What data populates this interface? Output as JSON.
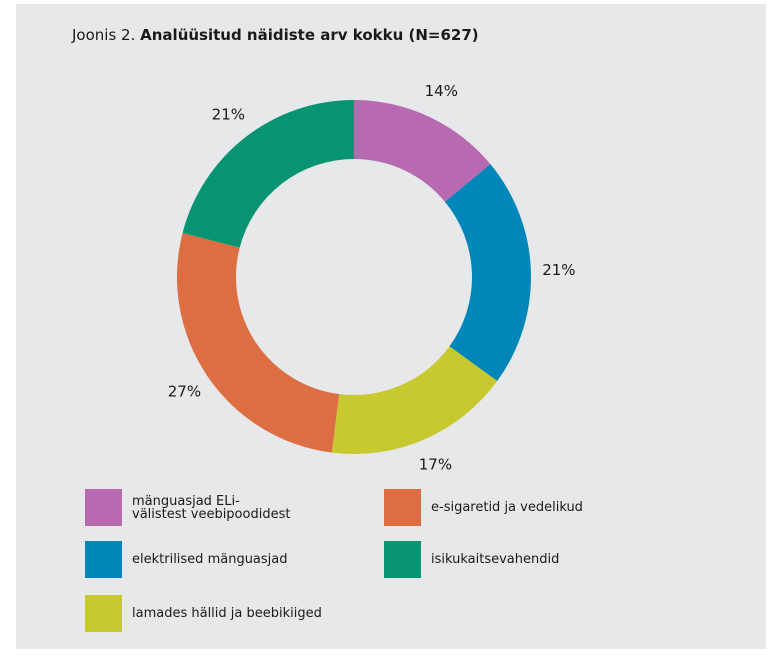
{
  "title": {
    "prefix": "Joonis 2.",
    "bold": "Analüüsitud näidiste arv kokku (N=627)"
  },
  "chart_data": {
    "type": "pie",
    "donut": true,
    "title": "Analüüsitud näidiste arv kokku (N=627)",
    "slices": [
      {
        "label": "mänguasjad ELi-\nvälistest veebipoodidest",
        "value": 14,
        "display": "14%",
        "color": "#b86ab0"
      },
      {
        "label": "elektrilised mänguasjad",
        "value": 21,
        "display": "21%",
        "color": "#0086b8"
      },
      {
        "label": "lamades hällid ja beebikiiged",
        "value": 17,
        "display": "17%",
        "color": "#c8c92f"
      },
      {
        "label": "e-sigaretid ja vedelikud",
        "value": 27,
        "display": "27%",
        "color": "#dc6e42"
      },
      {
        "label": "isikukaitsevahendid",
        "value": 21,
        "display": "21%",
        "color": "#079473"
      }
    ],
    "legend_position": "bottom"
  },
  "legend": [
    {
      "label": "mänguasjad ELi-\nvälistest veebipoodidest",
      "color": "#b86ab0"
    },
    {
      "label": "e-sigaretid ja vedelikud",
      "color": "#dc6e42"
    },
    {
      "label": "elektrilised mänguasjad",
      "color": "#0086b8"
    },
    {
      "label": "isikukaitsevahendid",
      "color": "#079473"
    },
    {
      "label": "lamades hällid ja beebikiiged",
      "color": "#c8c92f"
    }
  ]
}
